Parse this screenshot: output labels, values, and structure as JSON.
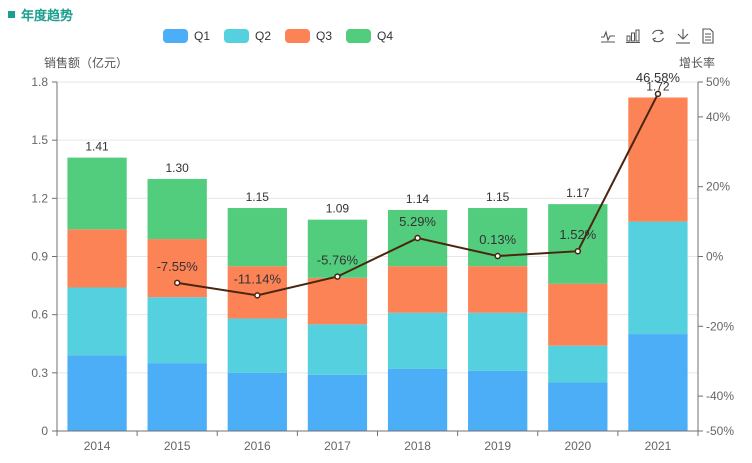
{
  "header": {
    "title": "年度趋势"
  },
  "toolbox": [
    {
      "name": "line-chart-icon",
      "label": "切换为折线图"
    },
    {
      "name": "bar-chart-icon",
      "label": "切换为柱状图"
    },
    {
      "name": "refresh-icon",
      "label": "还原"
    },
    {
      "name": "download-icon",
      "label": "保存为图片"
    },
    {
      "name": "data-view-icon",
      "label": "数据视图"
    }
  ],
  "colors": {
    "Q1": "#4caef7",
    "Q2": "#55d0de",
    "Q3": "#fc8355",
    "Q4": "#52cd7e",
    "line": "#4a2611",
    "title": "#1a9e8f"
  },
  "chart_data": {
    "type": "bar",
    "title": "年度趋势",
    "ylabel": "销售额（亿元）",
    "y2label": "增长率",
    "xlabel": "",
    "categories": [
      "2014",
      "2015",
      "2016",
      "2017",
      "2018",
      "2019",
      "2020",
      "2021"
    ],
    "ylim": [
      0,
      1.8
    ],
    "yticks": [
      "0",
      "0.3",
      "0.6",
      "0.9",
      "1.2",
      "1.5",
      "1.8"
    ],
    "y2lim": [
      -50,
      50
    ],
    "y2ticks": [
      "-50%",
      "-40%",
      "-20%",
      "0%",
      "20%",
      "40%",
      "50%"
    ],
    "grid": true,
    "legend_position": "top-center",
    "series": [
      {
        "name": "Q1",
        "type": "bar",
        "stack": "total",
        "values": [
          0.39,
          0.35,
          0.3,
          0.29,
          0.32,
          0.31,
          0.25,
          0.5
        ]
      },
      {
        "name": "Q2",
        "type": "bar",
        "stack": "total",
        "values": [
          0.35,
          0.34,
          0.28,
          0.26,
          0.29,
          0.3,
          0.19,
          0.58
        ]
      },
      {
        "name": "Q3",
        "type": "bar",
        "stack": "total",
        "values": [
          0.3,
          0.3,
          0.27,
          0.24,
          0.24,
          0.24,
          0.32,
          0.64
        ]
      },
      {
        "name": "Q4",
        "type": "bar",
        "stack": "total",
        "values": [
          0.37,
          0.31,
          0.3,
          0.3,
          0.29,
          0.3,
          0.41,
          0.0
        ]
      }
    ],
    "totals": [
      1.41,
      1.3,
      1.15,
      1.09,
      1.14,
      1.15,
      1.17,
      1.72
    ],
    "total_labels": [
      "1.41",
      "1.30",
      "1.15",
      "1.09",
      "1.14",
      "1.15",
      "1.17",
      "1.72"
    ],
    "growth": {
      "name": "增长率",
      "type": "line",
      "axis": "right",
      "values": [
        null,
        -7.55,
        -11.14,
        -5.76,
        5.29,
        0.13,
        1.52,
        46.58
      ],
      "labels": [
        null,
        "-7.55%",
        "-11.14%",
        "-5.76%",
        "5.29%",
        "0.13%",
        "1.52%",
        "46.58%"
      ]
    }
  }
}
